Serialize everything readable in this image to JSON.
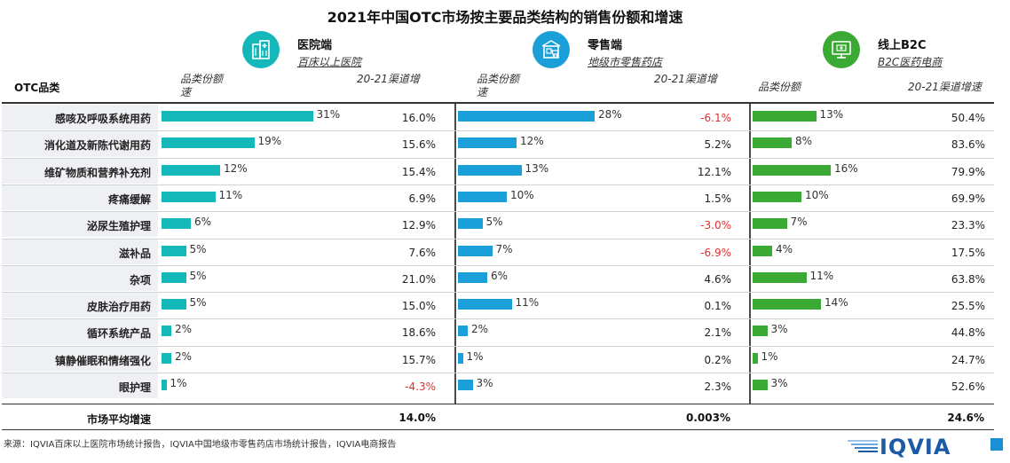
{
  "title": "2021年中国OTC市场按主要品类结构的销售份额和增速",
  "row_header": "OTC品类",
  "channels": [
    {
      "name": "医院端",
      "subtitle": "百床以上医院",
      "icon": "hospital-building-icon",
      "icon_color": "#14b8b8",
      "share_header": "品类份额速",
      "share_header_l1": "品类份额",
      "share_header_l2": "速",
      "growth_header": "20-21渠道增"
    },
    {
      "name": "零售端",
      "subtitle": "地级市零售药店",
      "icon": "pharmacy-store-icon",
      "icon_color": "#1a9fd8",
      "share_header": "品类份额速",
      "share_header_l1": "品类份额",
      "share_header_l2": "速",
      "growth_header": "20-21渠道增"
    },
    {
      "name": "线上B2C",
      "subtitle": "B2C医药电商",
      "icon": "online-computer-icon",
      "icon_color": "#3aaa35",
      "share_header": "品类份额",
      "share_header_l1": "品类份额",
      "share_header_l2": "",
      "growth_header": "20-21渠道增速"
    }
  ],
  "total": {
    "label": "市场平均增速",
    "values": [
      "14.0%",
      "0.003%",
      "24.6%"
    ]
  },
  "source": "来源：IQVIA百床以上医院市场统计报告，IQVIA中国地级市零售药店市场统计报告，IQVIA电商报告",
  "logo_text": "IQVIA",
  "chart_data": {
    "type": "bar",
    "title": "2021年中国OTC市场按主要品类结构的销售份额和增速",
    "categories": [
      "感咳及呼吸系统用药",
      "消化道及新陈代谢用药",
      "维矿物质和营养补充剂",
      "疼痛缓解",
      "泌尿生殖护理",
      "滋补品",
      "杂项",
      "皮肤治疗用药",
      "循环系统产品",
      "镇静催眠和情绪强化",
      "眼护理"
    ],
    "series": [
      {
        "name": "医院端",
        "color": "#14b8b8",
        "share": [
          31,
          19,
          12,
          11,
          6,
          5,
          5,
          5,
          2,
          2,
          1
        ],
        "share_labels": [
          "31%",
          "19%",
          "12%",
          "11%",
          "6%",
          "5%",
          "5%",
          "5%",
          "2%",
          "2%",
          "1%"
        ],
        "growth": [
          "16.0%",
          "15.6%",
          "15.4%",
          "6.9%",
          "12.9%",
          "7.6%",
          "21.0%",
          "15.0%",
          "18.6%",
          "15.7%",
          "-4.3%"
        ]
      },
      {
        "name": "零售端",
        "color": "#1a9fd8",
        "share": [
          28,
          12,
          13,
          10,
          5,
          7,
          6,
          11,
          2,
          1,
          3
        ],
        "share_labels": [
          "28%",
          "12%",
          "13%",
          "10%",
          "5%",
          "7%",
          "6%",
          "11%",
          "2%",
          "1%",
          "3%"
        ],
        "growth": [
          "-6.1%",
          "5.2%",
          "12.1%",
          "1.5%",
          "-3.0%",
          "-6.9%",
          "4.6%",
          "0.1%",
          "2.1%",
          "0.2%",
          "2.3%"
        ]
      },
      {
        "name": "线上B2C",
        "color": "#3aaa35",
        "share": [
          13,
          8,
          16,
          10,
          7,
          4,
          11,
          14,
          3,
          1,
          3
        ],
        "share_labels": [
          "13%",
          "8%",
          "16%",
          "10%",
          "7%",
          "4%",
          "11%",
          "14%",
          "3%",
          "1%",
          "3%"
        ],
        "growth": [
          "50.4%",
          "83.6%",
          "79.9%",
          "69.9%",
          "23.3%",
          "17.5%",
          "63.8%",
          "25.5%",
          "44.8%",
          "24.7%",
          "52.6%"
        ]
      }
    ],
    "negative_color": "#e03030"
  }
}
